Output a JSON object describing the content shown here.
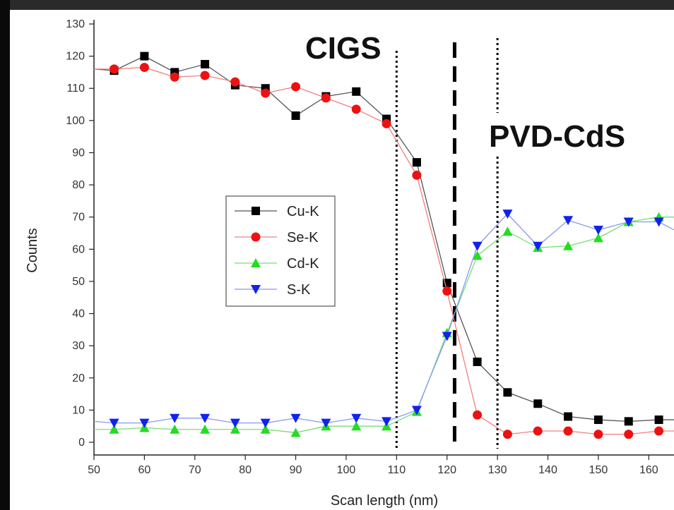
{
  "chart_data": {
    "type": "line",
    "title": "",
    "xlabel": "Scan length (nm)",
    "ylabel": "Counts",
    "xlim": [
      50,
      165
    ],
    "ylim": [
      0,
      130
    ],
    "xticks": [
      50,
      60,
      70,
      80,
      90,
      100,
      110,
      120,
      130,
      140,
      150,
      160
    ],
    "yticks": [
      0,
      10,
      20,
      30,
      40,
      50,
      60,
      70,
      80,
      90,
      100,
      110,
      120,
      130
    ],
    "grid": false,
    "legend_position": "center-left",
    "annotations": [
      "CIGS",
      "PVD-CdS"
    ],
    "boundary_lines": [
      {
        "x": 110,
        "style": "dotted"
      },
      {
        "x": 121.5,
        "style": "dashed"
      },
      {
        "x": 130,
        "style": "dotted"
      }
    ],
    "series": [
      {
        "name": "Cu-K",
        "marker": "square",
        "color": "#000000",
        "line_color": "#555555",
        "x": [
          50,
          54,
          60,
          66,
          72,
          78,
          84,
          90,
          96,
          102,
          108,
          114,
          120,
          126,
          132,
          138,
          144,
          150,
          156,
          162,
          165
        ],
        "y": [
          116,
          115.5,
          120,
          115,
          117.5,
          111,
          110,
          101.5,
          107.5,
          109,
          100.5,
          87,
          49.5,
          25,
          15.5,
          12,
          8,
          7,
          6.5,
          7,
          7
        ]
      },
      {
        "name": "Se-K",
        "marker": "circle",
        "color": "#ee1111",
        "line_color": "#f08080",
        "x": [
          50,
          54,
          60,
          66,
          72,
          78,
          84,
          90,
          96,
          102,
          108,
          114,
          120,
          126,
          132,
          138,
          144,
          150,
          156,
          162,
          165
        ],
        "y": [
          116,
          116,
          116.5,
          113.5,
          114,
          112,
          108.5,
          110.5,
          107,
          103.5,
          99,
          83,
          47,
          8.5,
          2.5,
          3.5,
          3.5,
          2.5,
          2.5,
          3.5,
          3.5
        ]
      },
      {
        "name": "Cd-K",
        "marker": "triangle-up",
        "color": "#22dd22",
        "line_color": "#77dd77",
        "x": [
          50,
          54,
          60,
          66,
          72,
          78,
          84,
          90,
          96,
          102,
          108,
          114,
          120,
          126,
          132,
          138,
          144,
          150,
          156,
          162,
          165
        ],
        "y": [
          4,
          4,
          4.5,
          4,
          4,
          4,
          4,
          3,
          5,
          5,
          5,
          9.5,
          34,
          58,
          65.5,
          60.5,
          61,
          63.5,
          68.5,
          70,
          70
        ]
      },
      {
        "name": "S-K",
        "marker": "triangle-down",
        "color": "#1122ee",
        "line_color": "#8899ee",
        "x": [
          50,
          54,
          60,
          66,
          72,
          78,
          84,
          90,
          96,
          102,
          108,
          114,
          120,
          126,
          132,
          138,
          144,
          150,
          156,
          162,
          165
        ],
        "y": [
          6.5,
          6,
          6,
          7.5,
          7.5,
          6,
          6,
          7.5,
          6,
          7.5,
          6.5,
          10,
          33,
          61,
          71,
          61,
          69,
          66,
          68.5,
          68.5,
          66
        ]
      }
    ]
  }
}
